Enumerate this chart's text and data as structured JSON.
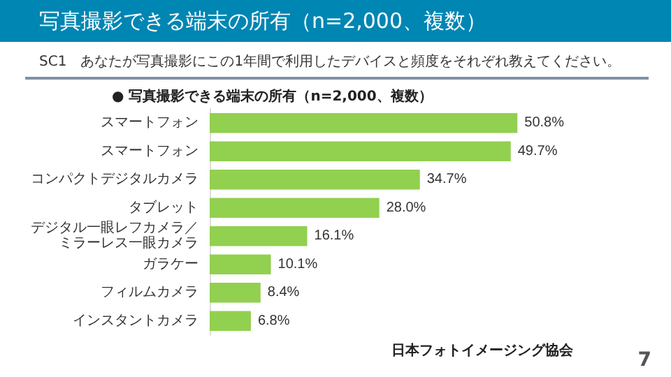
{
  "chart_data": {
    "type": "bar",
    "orientation": "horizontal",
    "title": "写真撮影できる端末の所有（n=2,000、複数）",
    "subtitle": "SC1　あなたが写真撮影にこの1年間で利用したデバイスと頻度をそれぞれ教えてください。",
    "categories": [
      "スマートフォン",
      "スマートフォン",
      "コンパクトデジタルカメラ",
      "タブレット",
      "デジタル一眼レフカメラ／ミラーレス一眼カメラ",
      "ガラケー",
      "フィルムカメラ",
      "インスタントカメラ"
    ],
    "values": [
      50.8,
      49.7,
      34.7,
      28.0,
      16.1,
      10.1,
      8.4,
      6.8
    ],
    "value_labels": [
      "50.8%",
      "49.7%",
      "34.7%",
      "28.0%",
      "16.1%",
      "10.1%",
      "8.4%",
      "6.8%"
    ],
    "color": "#92d050",
    "annotations": [
      "● 写真撮影できる端末の所有（n=2,000、複数）",
      "日本フォトイメージング協会",
      "7"
    ]
  }
}
